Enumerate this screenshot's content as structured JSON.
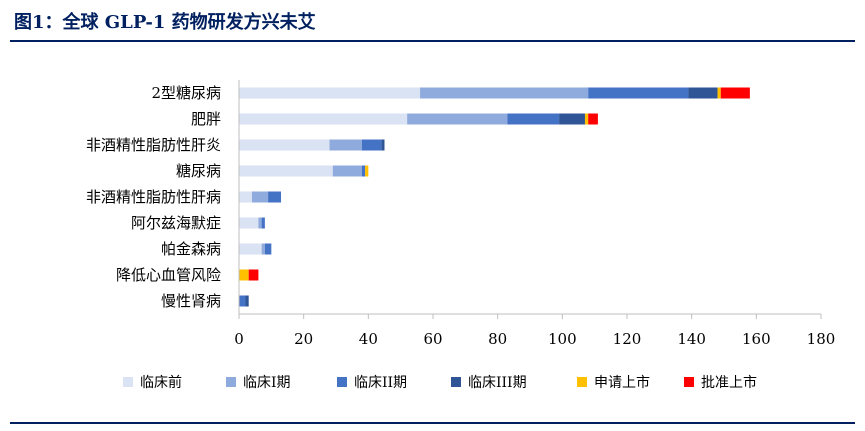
{
  "figure": {
    "title": "图1：全球 GLP-1 药物研发方兴未艾"
  },
  "chart_data": {
    "type": "bar",
    "orientation": "horizontal",
    "stacked": true,
    "title": "",
    "xlabel": "",
    "ylabel": "",
    "xlim": [
      0,
      180
    ],
    "xticks": [
      0,
      20,
      40,
      60,
      80,
      100,
      120,
      140,
      160,
      180
    ],
    "grid": false,
    "legend_position": "bottom",
    "categories": [
      "2型糖尿病",
      "肥胖",
      "非酒精性脂肪性肝炎",
      "糖尿病",
      "非酒精性脂肪性肝病",
      "阿尔兹海默症",
      "帕金森病",
      "降低心血管风险",
      "慢性肾病"
    ],
    "series": [
      {
        "name": "临床前",
        "color": "#DAE3F3",
        "values": [
          56,
          52,
          28,
          29,
          4,
          6,
          7,
          0,
          0
        ]
      },
      {
        "name": "临床I期",
        "color": "#8FAADC",
        "values": [
          52,
          31,
          10,
          9,
          5,
          1,
          1,
          0,
          0
        ]
      },
      {
        "name": "临床II期",
        "color": "#4472C4",
        "values": [
          31,
          16,
          6,
          1,
          4,
          1,
          2,
          0,
          2
        ]
      },
      {
        "name": "临床III期",
        "color": "#2F5597",
        "values": [
          9,
          8,
          1,
          0,
          0,
          0,
          0,
          0,
          1
        ]
      },
      {
        "name": "申请上市",
        "color": "#FFC000",
        "values": [
          1,
          1,
          0,
          1,
          0,
          0,
          0,
          3,
          0
        ]
      },
      {
        "name": "批准上市",
        "color": "#FF0000",
        "values": [
          9,
          3,
          0,
          0,
          0,
          0,
          0,
          3,
          0
        ]
      }
    ]
  }
}
